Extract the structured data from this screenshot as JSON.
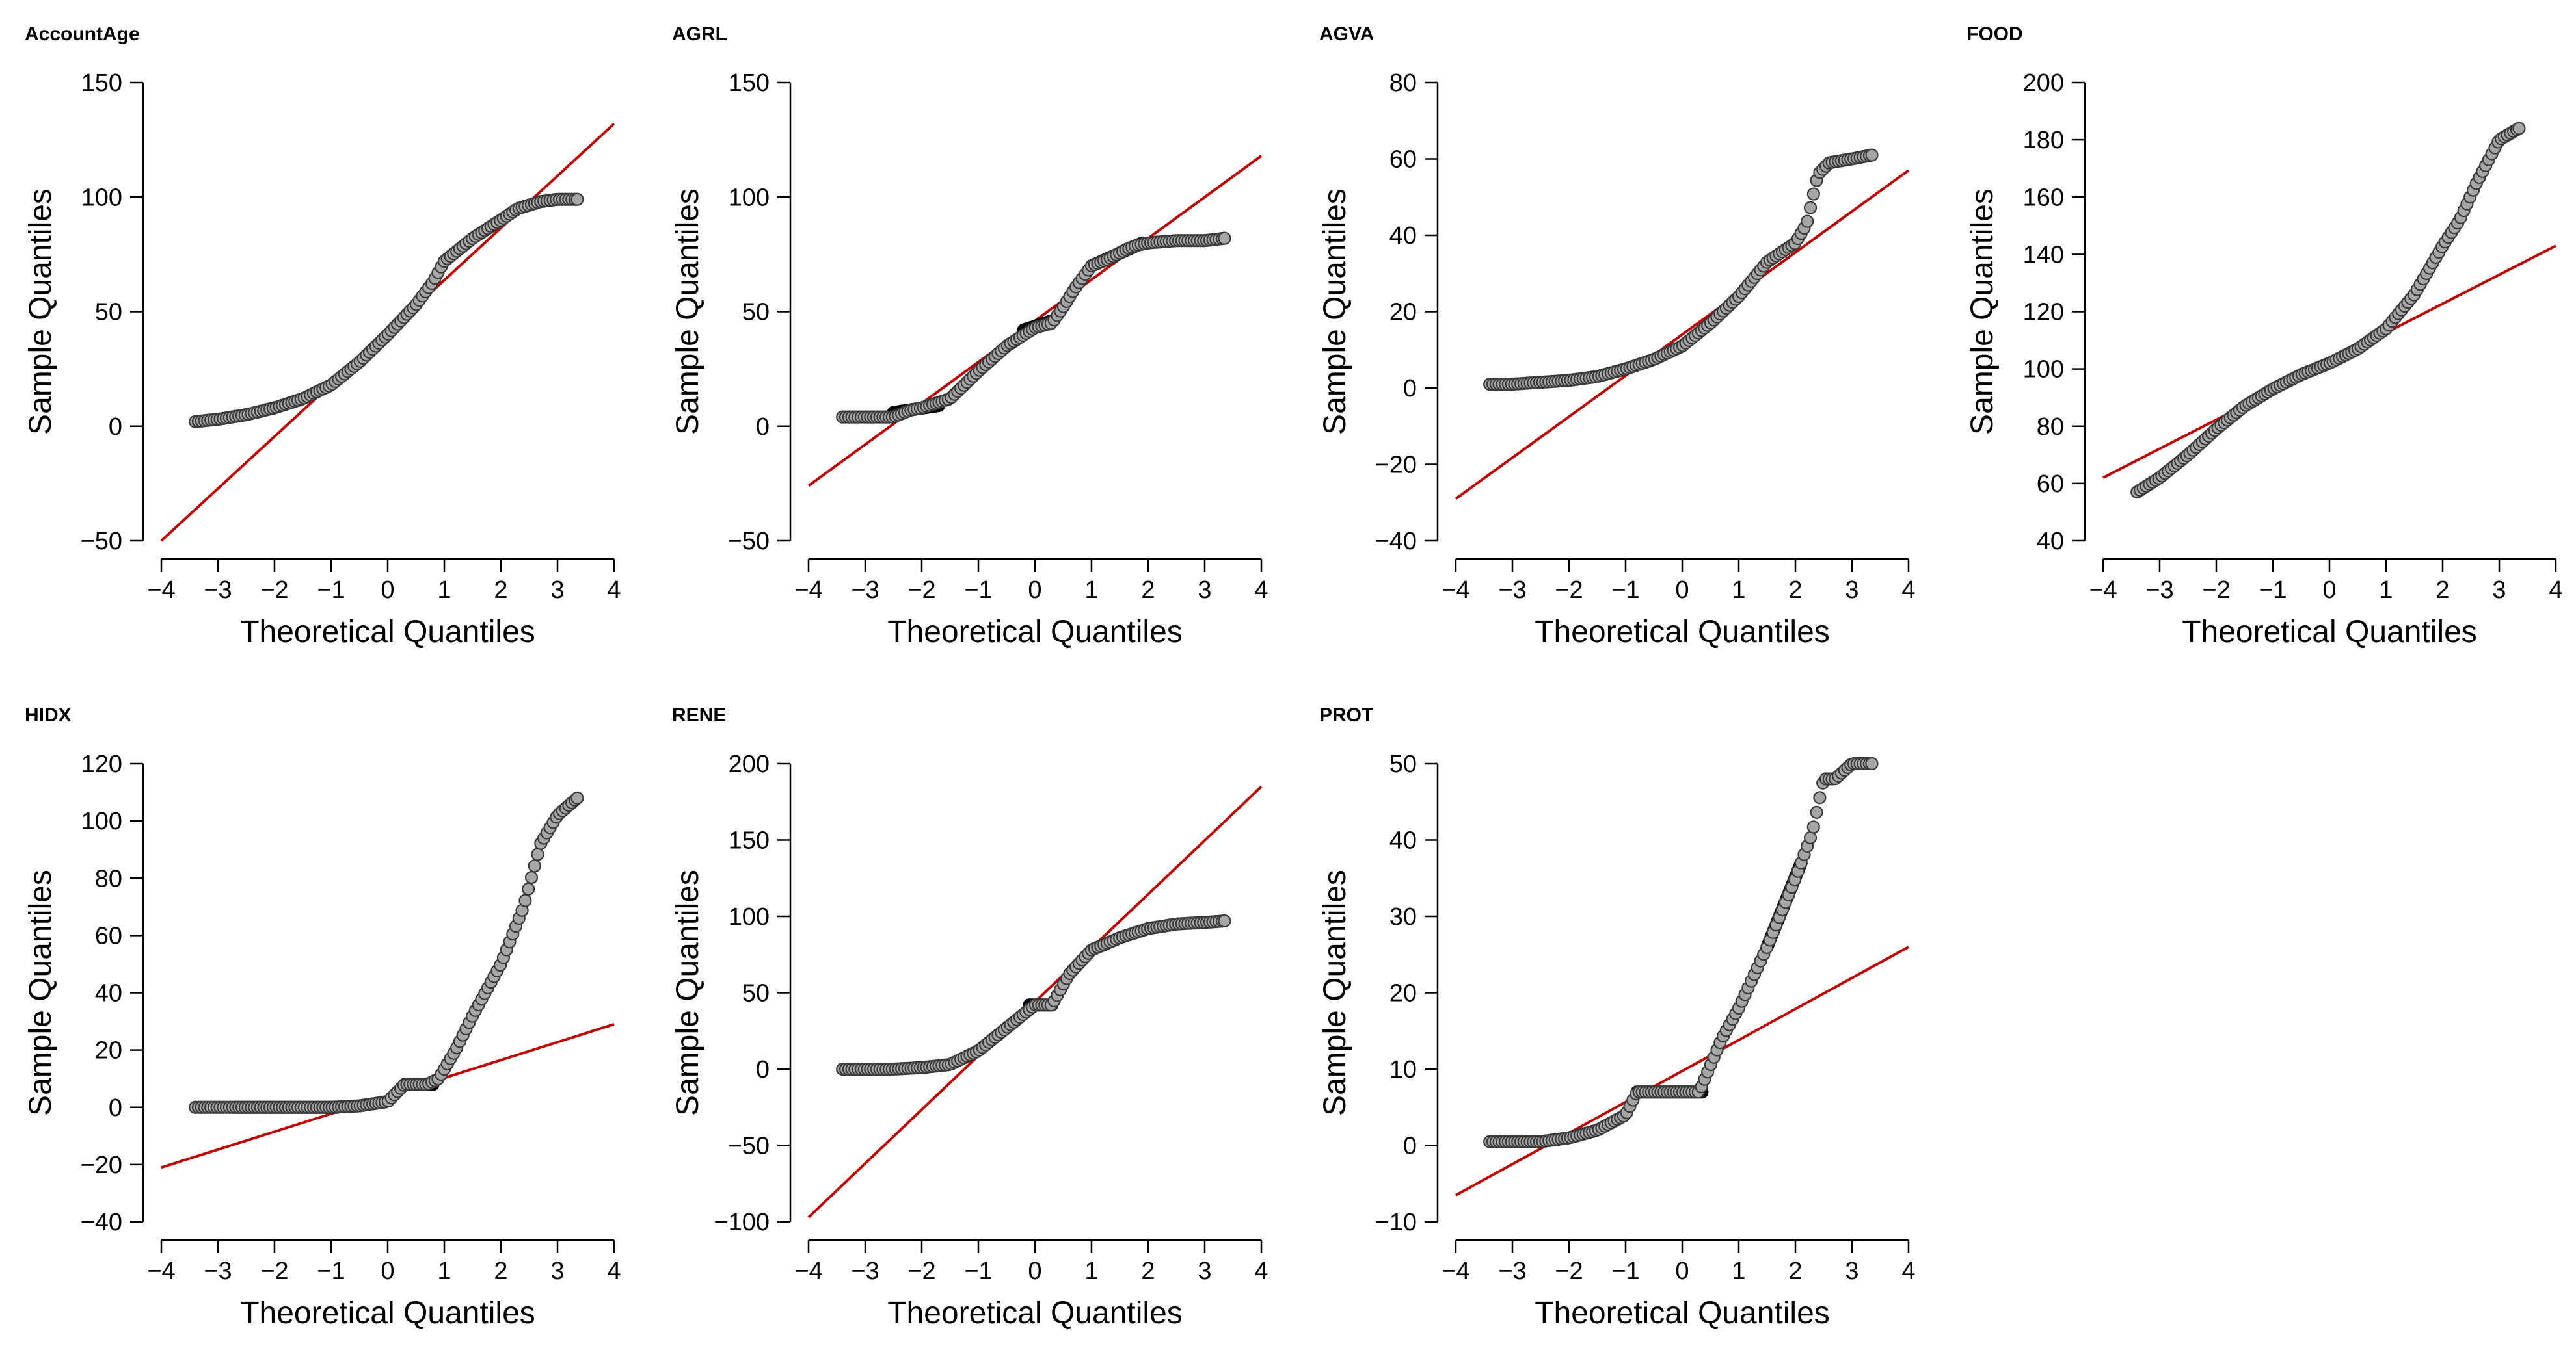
{
  "chart_data": [
    {
      "type": "scatter",
      "title": "AccountAge",
      "xlabel": "Theoretical Quantiles",
      "ylabel": "Sample Quantiles",
      "xlim": [
        -4,
        4
      ],
      "ylim": [
        -50,
        150
      ],
      "xticks": [
        -4,
        -3,
        -2,
        -1,
        0,
        1,
        2,
        3,
        4
      ],
      "yticks": [
        -50,
        0,
        50,
        100,
        150
      ],
      "reference_line": {
        "x": [
          -4,
          4
        ],
        "y": [
          -50,
          132
        ]
      },
      "quantile_curve": {
        "x": [
          -3.4,
          -3.0,
          -2.5,
          -2.0,
          -1.5,
          -1.0,
          -0.5,
          0,
          0.5,
          0.8,
          1.0,
          1.5,
          2.0,
          2.3,
          2.7,
          3.0,
          3.35
        ],
        "y": [
          2,
          3,
          5,
          8,
          12,
          18,
          28,
          40,
          53,
          63,
          72,
          82,
          90,
          95,
          98,
          99,
          99
        ]
      },
      "dense_segments": []
    },
    {
      "type": "scatter",
      "title": "AGRL",
      "xlabel": "Theoretical Quantiles",
      "ylabel": "Sample Quantiles",
      "xlim": [
        -4,
        4
      ],
      "ylim": [
        -50,
        150
      ],
      "xticks": [
        -4,
        -3,
        -2,
        -1,
        0,
        1,
        2,
        3,
        4
      ],
      "yticks": [
        -50,
        0,
        50,
        100,
        150
      ],
      "reference_line": {
        "x": [
          -4,
          4
        ],
        "y": [
          -26,
          118
        ]
      },
      "quantile_curve": {
        "x": [
          -3.4,
          -3.0,
          -2.5,
          -2.2,
          -2.0,
          -1.5,
          -1.0,
          -0.5,
          0,
          0.3,
          0.5,
          0.7,
          1.0,
          1.3,
          1.6,
          1.8,
          2.0,
          2.5,
          3.0,
          3.35
        ],
        "y": [
          4,
          4,
          4,
          7,
          8,
          12,
          24,
          35,
          43,
          45,
          52,
          60,
          70,
          73,
          77,
          79,
          80,
          81,
          81,
          82
        ]
      },
      "dense_segments": [
        {
          "x": [
            -2.5,
            -1.7
          ],
          "y": [
            6,
            9
          ]
        },
        {
          "x": [
            -0.2,
            0.3
          ],
          "y": [
            42,
            46
          ]
        },
        {
          "x": [
            1.0,
            1.9
          ],
          "y": [
            70,
            80
          ]
        }
      ]
    },
    {
      "type": "scatter",
      "title": "AGVA",
      "xlabel": "Theoretical Quantiles",
      "ylabel": "Sample Quantiles",
      "xlim": [
        -4,
        4
      ],
      "ylim": [
        -40,
        80
      ],
      "xticks": [
        -4,
        -3,
        -2,
        -1,
        0,
        1,
        2,
        3,
        4
      ],
      "yticks": [
        -40,
        -20,
        0,
        20,
        40,
        60,
        80
      ],
      "reference_line": {
        "x": [
          -4,
          4
        ],
        "y": [
          -29,
          57
        ]
      },
      "quantile_curve": {
        "x": [
          -3.4,
          -3.0,
          -2.5,
          -2.0,
          -1.5,
          -1.0,
          -0.5,
          0,
          0.5,
          1.0,
          1.5,
          2.0,
          2.2,
          2.4,
          2.6,
          3.0,
          3.35
        ],
        "y": [
          1,
          1,
          1.5,
          2,
          3,
          5,
          7.5,
          11,
          17,
          24,
          33,
          38,
          43,
          56,
          59,
          60,
          61
        ]
      },
      "dense_segments": []
    },
    {
      "type": "scatter",
      "title": "FOOD",
      "xlabel": "Theoretical Quantiles",
      "ylabel": "Sample Quantiles",
      "xlim": [
        -4,
        4
      ],
      "ylim": [
        40,
        200
      ],
      "xticks": [
        -4,
        -3,
        -2,
        -1,
        0,
        1,
        2,
        3,
        4
      ],
      "yticks": [
        40,
        60,
        80,
        100,
        120,
        140,
        160,
        180,
        200
      ],
      "reference_line": {
        "x": [
          -4,
          4
        ],
        "y": [
          62,
          143
        ]
      },
      "quantile_curve": {
        "x": [
          -3.4,
          -3.0,
          -2.5,
          -2.0,
          -1.5,
          -1.0,
          -0.5,
          0,
          0.5,
          1.0,
          1.5,
          2.0,
          2.3,
          2.6,
          3.0,
          3.35
        ],
        "y": [
          57,
          62,
          70,
          79,
          87,
          93,
          98,
          102,
          107,
          114,
          126,
          143,
          152,
          165,
          180,
          184
        ]
      },
      "dense_segments": []
    },
    {
      "type": "scatter",
      "title": "HIDX",
      "xlabel": "Theoretical Quantiles",
      "ylabel": "Sample Quantiles",
      "xlim": [
        -4,
        4
      ],
      "ylim": [
        -40,
        120
      ],
      "xticks": [
        -4,
        -3,
        -2,
        -1,
        0,
        1,
        2,
        3,
        4
      ],
      "yticks": [
        -40,
        -20,
        0,
        20,
        40,
        60,
        80,
        100,
        120
      ],
      "reference_line": {
        "x": [
          -4,
          4
        ],
        "y": [
          -21,
          29
        ]
      },
      "quantile_curve": {
        "x": [
          -3.4,
          -3.0,
          -2.0,
          -1.0,
          -0.5,
          0,
          0.3,
          0.7,
          0.9,
          1.2,
          1.5,
          2.0,
          2.4,
          2.7,
          3.0,
          3.35
        ],
        "y": [
          0,
          0,
          0,
          0,
          0.5,
          2,
          8,
          8,
          10,
          20,
          32,
          50,
          70,
          92,
          102,
          108
        ]
      },
      "dense_segments": [
        {
          "x": [
            -2.7,
            -0.9
          ],
          "y": [
            0,
            0
          ]
        },
        {
          "x": [
            0.3,
            0.8
          ],
          "y": [
            8,
            8
          ]
        }
      ]
    },
    {
      "type": "scatter",
      "title": "RENE",
      "xlabel": "Theoretical Quantiles",
      "ylabel": "Sample Quantiles",
      "xlim": [
        -4,
        4
      ],
      "ylim": [
        -100,
        200
      ],
      "xticks": [
        -4,
        -3,
        -2,
        -1,
        0,
        1,
        2,
        3,
        4
      ],
      "yticks": [
        -100,
        -50,
        0,
        50,
        100,
        150,
        200
      ],
      "reference_line": {
        "x": [
          -4,
          4
        ],
        "y": [
          -97,
          185
        ]
      },
      "quantile_curve": {
        "x": [
          -3.4,
          -3.0,
          -2.5,
          -2.0,
          -1.5,
          -1.0,
          -0.5,
          0,
          0.3,
          0.6,
          1.0,
          1.5,
          2.0,
          2.5,
          3.0,
          3.35
        ],
        "y": [
          0,
          0,
          0,
          1,
          3,
          12,
          27,
          42,
          42,
          62,
          78,
          86,
          92,
          95,
          96,
          97
        ]
      },
      "dense_segments": [
        {
          "x": [
            -0.1,
            0.3
          ],
          "y": [
            42,
            42
          ]
        }
      ]
    },
    {
      "type": "scatter",
      "title": "PROT",
      "xlabel": "Theoretical Quantiles",
      "ylabel": "Sample Quantiles",
      "xlim": [
        -4,
        4
      ],
      "ylim": [
        -10,
        50
      ],
      "xticks": [
        -4,
        -3,
        -2,
        -1,
        0,
        1,
        2,
        3,
        4
      ],
      "yticks": [
        -10,
        0,
        10,
        20,
        30,
        40,
        50
      ],
      "reference_line": {
        "x": [
          -4,
          4
        ],
        "y": [
          -6.5,
          26
        ]
      },
      "quantile_curve": {
        "x": [
          -3.4,
          -3.0,
          -2.5,
          -2.0,
          -1.5,
          -1.0,
          -0.8,
          0,
          0.3,
          0.7,
          1.0,
          1.5,
          2.0,
          2.3,
          2.5,
          2.7,
          3.0,
          3.35
        ],
        "y": [
          0.5,
          0.5,
          0.5,
          1,
          2,
          4,
          7,
          7,
          7,
          14,
          18,
          26,
          35,
          41,
          48,
          48,
          50,
          50
        ]
      },
      "dense_segments": [
        {
          "x": [
            -0.8,
            0.35
          ],
          "y": [
            7,
            7
          ]
        },
        {
          "x": [
            1.5,
            2.1
          ],
          "y": [
            26,
            37
          ]
        }
      ]
    }
  ],
  "colors": {
    "reference_line": "#c00000",
    "point_fill": "#a6a6a6",
    "point_stroke": "#3a3a3a",
    "axis": "#000000"
  }
}
